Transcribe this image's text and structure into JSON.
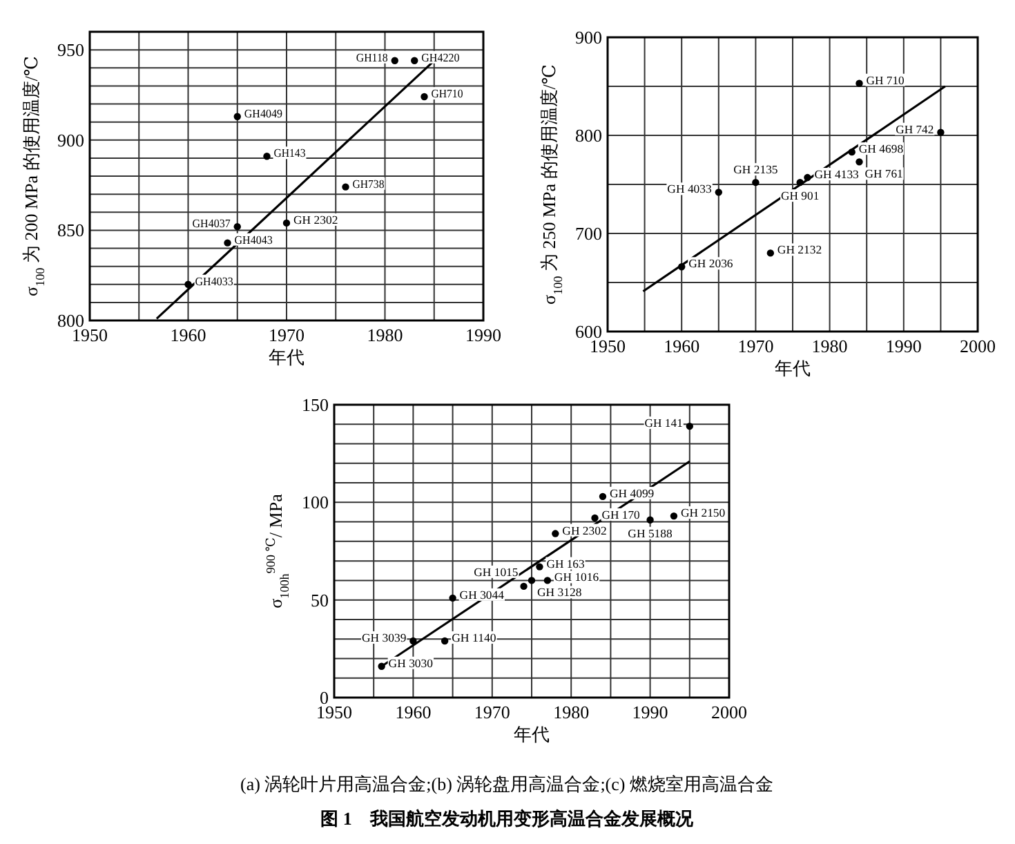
{
  "chart_data": [
    {
      "type": "scatter",
      "xlabel": "年代",
      "ylabel": "σ$_{100}$ 为 200 MPa 的使用温度/℃",
      "xlim": [
        1950,
        1990
      ],
      "ylim": [
        800,
        960
      ],
      "xticks": [
        1950,
        {
          "value": 1955,
          "label": null
        },
        1960,
        {
          "value": 1965,
          "label": null
        },
        1970,
        {
          "value": 1975,
          "label": null
        },
        1980,
        {
          "value": 1985,
          "label": null
        },
        1990
      ],
      "yticks": [
        800,
        {
          "value": 810,
          "label": null
        },
        {
          "value": 820,
          "label": null
        },
        {
          "value": 830,
          "label": null
        },
        {
          "value": 840,
          "label": null
        },
        850,
        {
          "value": 860,
          "label": null
        },
        {
          "value": 870,
          "label": null
        },
        {
          "value": 880,
          "label": null
        },
        {
          "value": 890,
          "label": null
        },
        900,
        {
          "value": 910,
          "label": null
        },
        {
          "value": 920,
          "label": null
        },
        {
          "value": 930,
          "label": null
        },
        {
          "value": 940,
          "label": null
        },
        950
      ],
      "grid": true,
      "series": [
        {
          "type": "scatter",
          "marker": "circle",
          "color": "#000000",
          "x": [
            1960,
            1964,
            1965,
            1970,
            1965,
            1968,
            1976,
            1981,
            1983,
            1984
          ],
          "values": [
            820,
            843,
            852,
            854,
            913,
            891,
            874,
            944,
            944,
            924
          ]
        },
        {
          "type": "line",
          "color": "#000000",
          "x": [
            1956.8,
            1985.8
          ],
          "values": [
            801,
            948
          ]
        }
      ],
      "annotations": [
        {
          "text": "GH4033",
          "x": 1960,
          "y": 820
        },
        {
          "text": "GH4043",
          "x": 1964,
          "y": 843
        },
        {
          "text": "GH4037",
          "x": 1965,
          "y": 852
        },
        {
          "text": "GH 2302",
          "x": 1970,
          "y": 854
        },
        {
          "text": "GH4049",
          "x": 1965,
          "y": 913
        },
        {
          "text": "GH143",
          "x": 1968,
          "y": 891
        },
        {
          "text": "GH738",
          "x": 1976,
          "y": 874
        },
        {
          "text": "GH118",
          "x": 1981,
          "y": 944
        },
        {
          "text": "GH4220",
          "x": 1983,
          "y": 944
        },
        {
          "text": "GH710",
          "x": 1984,
          "y": 924
        }
      ]
    },
    {
      "type": "scatter",
      "xlabel": "年代",
      "ylabel": "σ$_{100}$ 为 250 MPa 的使用温度/℃",
      "xlim": [
        1950,
        2000
      ],
      "ylim": [
        600,
        900
      ],
      "xticks": [
        1950,
        {
          "value": 1955,
          "label": null
        },
        1960,
        {
          "value": 1965,
          "label": null
        },
        1970,
        {
          "value": 1975,
          "label": null
        },
        1980,
        {
          "value": 1985,
          "label": null
        },
        1990,
        {
          "value": 1995,
          "label": null
        },
        2000
      ],
      "yticks": [
        600,
        {
          "value": 650,
          "label": null
        },
        700,
        {
          "value": 750,
          "label": null
        },
        800,
        {
          "value": 850,
          "label": null
        },
        900
      ],
      "grid": true,
      "series": [
        {
          "type": "scatter",
          "marker": "circle",
          "color": "#000000",
          "x": [
            1960,
            1965,
            1970,
            1972,
            1976,
            1977,
            1983,
            1984,
            1984,
            1995
          ],
          "values": [
            666,
            742,
            752,
            680,
            752,
            757,
            783,
            773,
            853,
            803
          ]
        },
        {
          "type": "line",
          "color": "#000000",
          "x": [
            1954.8,
            1995.6
          ],
          "values": [
            641,
            850
          ]
        }
      ],
      "annotations": [
        {
          "text": "GH 2036",
          "x": 1960,
          "y": 666
        },
        {
          "text": "GH 4033",
          "x": 1965,
          "y": 742
        },
        {
          "text": "GH 2135",
          "x": 1970,
          "y": 752
        },
        {
          "text": "GH 2132",
          "x": 1972,
          "y": 680
        },
        {
          "text": "GH 901",
          "x": 1976,
          "y": 752
        },
        {
          "text": "GH 4133",
          "x": 1977,
          "y": 757
        },
        {
          "text": "GH 4698",
          "x": 1983,
          "y": 783
        },
        {
          "text": "GH 761",
          "x": 1984,
          "y": 773
        },
        {
          "text": "GH 710",
          "x": 1984,
          "y": 853
        },
        {
          "text": "GH 742",
          "x": 1995,
          "y": 803
        }
      ]
    },
    {
      "type": "scatter",
      "xlabel": "年代",
      "ylabel": "σ$_{100h}$$^{900 ℃}$/ MPa",
      "xlim": [
        1950,
        2000
      ],
      "ylim": [
        0,
        150
      ],
      "xticks": [
        1950,
        {
          "value": 1955,
          "label": null
        },
        1960,
        {
          "value": 1965,
          "label": null
        },
        1970,
        {
          "value": 1975,
          "label": null
        },
        1980,
        {
          "value": 1985,
          "label": null
        },
        1990,
        {
          "value": 1995,
          "label": null
        },
        2000
      ],
      "yticks": [
        0,
        {
          "value": 10,
          "label": null
        },
        {
          "value": 20,
          "label": null
        },
        {
          "value": 30,
          "label": null
        },
        {
          "value": 40,
          "label": null
        },
        50,
        {
          "value": 60,
          "label": null
        },
        {
          "value": 70,
          "label": null
        },
        {
          "value": 80,
          "label": null
        },
        {
          "value": 90,
          "label": null
        },
        100,
        {
          "value": 110,
          "label": null
        },
        {
          "value": 120,
          "label": null
        },
        {
          "value": 130,
          "label": null
        },
        {
          "value": 140,
          "label": null
        },
        150
      ],
      "grid": true,
      "series": [
        {
          "type": "scatter",
          "marker": "circle",
          "color": "#000000",
          "x": [
            1956,
            1960,
            1964,
            1965,
            1974,
            1975,
            1976,
            1977,
            1978,
            1983,
            1984,
            1990,
            1993,
            1995
          ],
          "values": [
            16,
            29,
            29,
            51,
            57,
            60,
            67,
            60,
            84,
            92,
            103,
            91,
            93,
            139
          ]
        },
        {
          "type": "line",
          "color": "#000000",
          "x": [
            1956,
            1995
          ],
          "values": [
            16,
            121
          ]
        }
      ],
      "annotations": [
        {
          "text": "GH 3030",
          "x": 1956,
          "y": 16
        },
        {
          "text": "GH 3039",
          "x": 1960,
          "y": 29
        },
        {
          "text": "GH 1140",
          "x": 1964,
          "y": 29
        },
        {
          "text": "GH 3044",
          "x": 1965,
          "y": 51
        },
        {
          "text": "GH 1015",
          "x": 1974,
          "y": 57
        },
        {
          "text": "GH 3128",
          "x": 1975,
          "y": 60
        },
        {
          "text": "GH 163",
          "x": 1976,
          "y": 67
        },
        {
          "text": "GH 1016",
          "x": 1977,
          "y": 60
        },
        {
          "text": "GH 2302",
          "x": 1978,
          "y": 84
        },
        {
          "text": "GH 170",
          "x": 1983,
          "y": 92
        },
        {
          "text": "GH 4099",
          "x": 1984,
          "y": 103
        },
        {
          "text": "GH 5188",
          "x": 1990,
          "y": 91
        },
        {
          "text": "GH 2150",
          "x": 1993,
          "y": 93
        },
        {
          "text": "GH 141",
          "x": 1995,
          "y": 139
        }
      ]
    },
    {
      "type": "other",
      "title": "图 1　我国航空发动机用变形高温合金发展概况",
      "subtitle": "(a) 涡轮叶片用高温合金;(b) 涡轮盘用高温合金;(c) 燃烧室用高温合金"
    }
  ]
}
